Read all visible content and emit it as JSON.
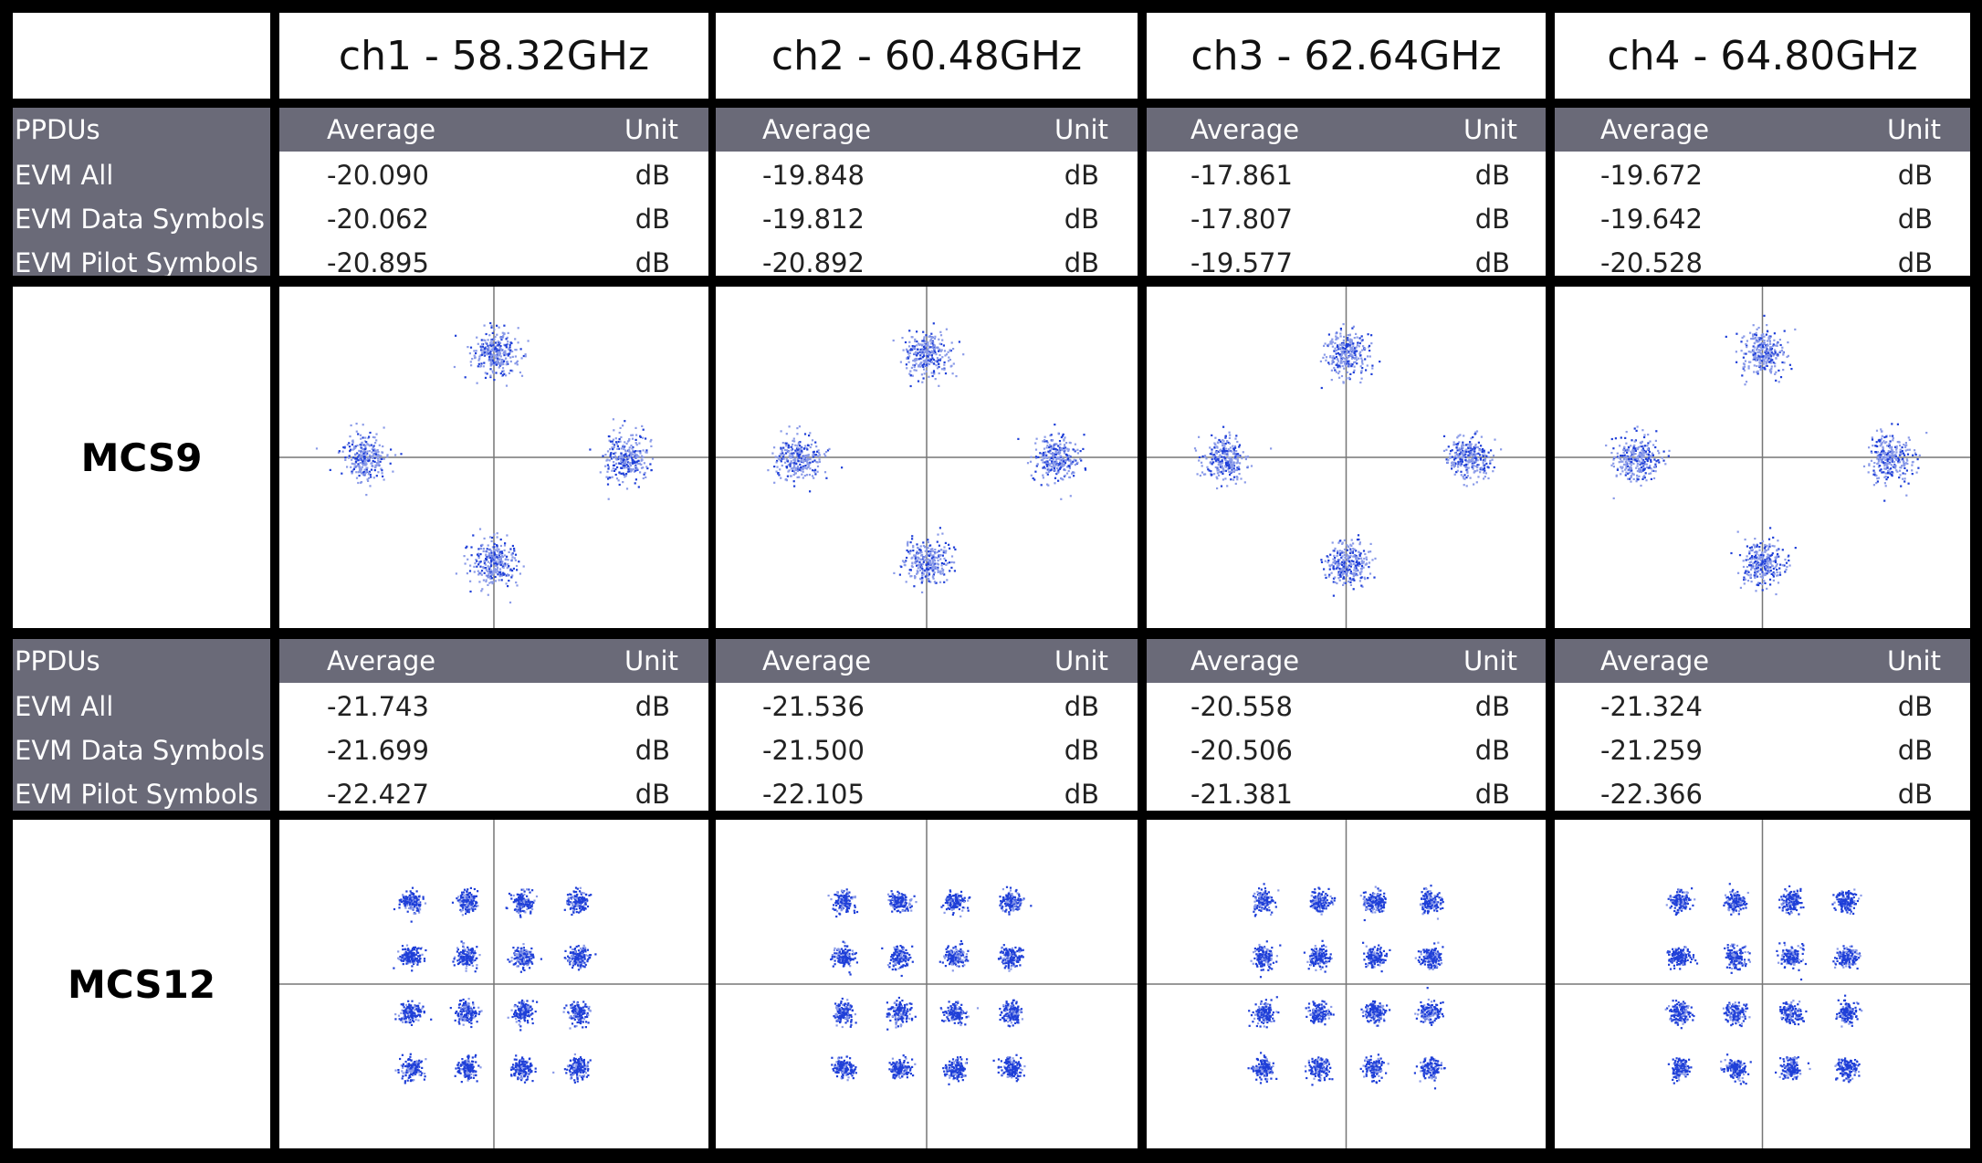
{
  "channels": [
    {
      "label": "ch1 - 58.32GHz"
    },
    {
      "label": "ch2 - 60.48GHz"
    },
    {
      "label": "ch3 - 62.64GHz"
    },
    {
      "label": "ch4 - 64.80GHz"
    }
  ],
  "metrics_table": {
    "header_label": "PPDUs",
    "col_average": "Average",
    "col_unit": "Unit",
    "rows": [
      "EVM All",
      "EVM Data Symbols",
      "EVM Pilot Symbols"
    ]
  },
  "mcs_blocks": [
    {
      "label": "MCS9",
      "values": [
        [
          {
            "avg": "-20.090",
            "unit": "dB"
          },
          {
            "avg": "-20.062",
            "unit": "dB"
          },
          {
            "avg": "-20.895",
            "unit": "dB"
          }
        ],
        [
          {
            "avg": "-19.848",
            "unit": "dB"
          },
          {
            "avg": "-19.812",
            "unit": "dB"
          },
          {
            "avg": "-20.892",
            "unit": "dB"
          }
        ],
        [
          {
            "avg": "-17.861",
            "unit": "dB"
          },
          {
            "avg": "-17.807",
            "unit": "dB"
          },
          {
            "avg": "-19.577",
            "unit": "dB"
          }
        ],
        [
          {
            "avg": "-19.672",
            "unit": "dB"
          },
          {
            "avg": "-19.642",
            "unit": "dB"
          },
          {
            "avg": "-20.528",
            "unit": "dB"
          }
        ]
      ]
    },
    {
      "label": "MCS12",
      "values": [
        [
          {
            "avg": "-21.743",
            "unit": "dB"
          },
          {
            "avg": "-21.699",
            "unit": "dB"
          },
          {
            "avg": "-22.427",
            "unit": "dB"
          }
        ],
        [
          {
            "avg": "-21.536",
            "unit": "dB"
          },
          {
            "avg": "-21.500",
            "unit": "dB"
          },
          {
            "avg": "-22.105",
            "unit": "dB"
          }
        ],
        [
          {
            "avg": "-20.558",
            "unit": "dB"
          },
          {
            "avg": "-20.506",
            "unit": "dB"
          },
          {
            "avg": "-21.381",
            "unit": "dB"
          }
        ],
        [
          {
            "avg": "-21.324",
            "unit": "dB"
          },
          {
            "avg": "-21.259",
            "unit": "dB"
          },
          {
            "avg": "-22.366",
            "unit": "dB"
          }
        ]
      ]
    }
  ],
  "colors": {
    "grid_border": "#000000",
    "table_header_bg": "#6a6a78",
    "table_header_text": "#ffffff",
    "constellation_point": "#1f3fd8",
    "constellation_point_light": "#8a9be8",
    "axis_line": "#777777"
  },
  "chart_data": [
    {
      "type": "scatter",
      "name_ref": "MCS9",
      "modulation_points": [
        [
          0,
          1
        ],
        [
          -1,
          0
        ],
        [
          1,
          0
        ],
        [
          0,
          -1
        ]
      ],
      "xlim": [
        -1.5,
        1.5
      ],
      "ylim": [
        -1.5,
        1.5
      ],
      "points_per_cluster": 280,
      "spread": 0.16,
      "plots": 4
    },
    {
      "type": "scatter",
      "name_ref": "MCS12",
      "modulation_points": [
        [
          -1.5,
          1.5
        ],
        [
          -0.5,
          1.5
        ],
        [
          0.5,
          1.5
        ],
        [
          1.5,
          1.5
        ],
        [
          -1.5,
          0.5
        ],
        [
          -0.5,
          0.5
        ],
        [
          0.5,
          0.5
        ],
        [
          1.5,
          0.5
        ],
        [
          -1.5,
          -0.5
        ],
        [
          -0.5,
          -0.5
        ],
        [
          0.5,
          -0.5
        ],
        [
          1.5,
          -0.5
        ],
        [
          -1.5,
          -1.5
        ],
        [
          -0.5,
          -1.5
        ],
        [
          0.5,
          -1.5
        ],
        [
          1.5,
          -1.5
        ]
      ],
      "xlim": [
        -2.5,
        2.5
      ],
      "ylim": [
        -2.5,
        2.5
      ],
      "points_per_cluster": 150,
      "spread": 0.17,
      "plots": 4
    }
  ]
}
